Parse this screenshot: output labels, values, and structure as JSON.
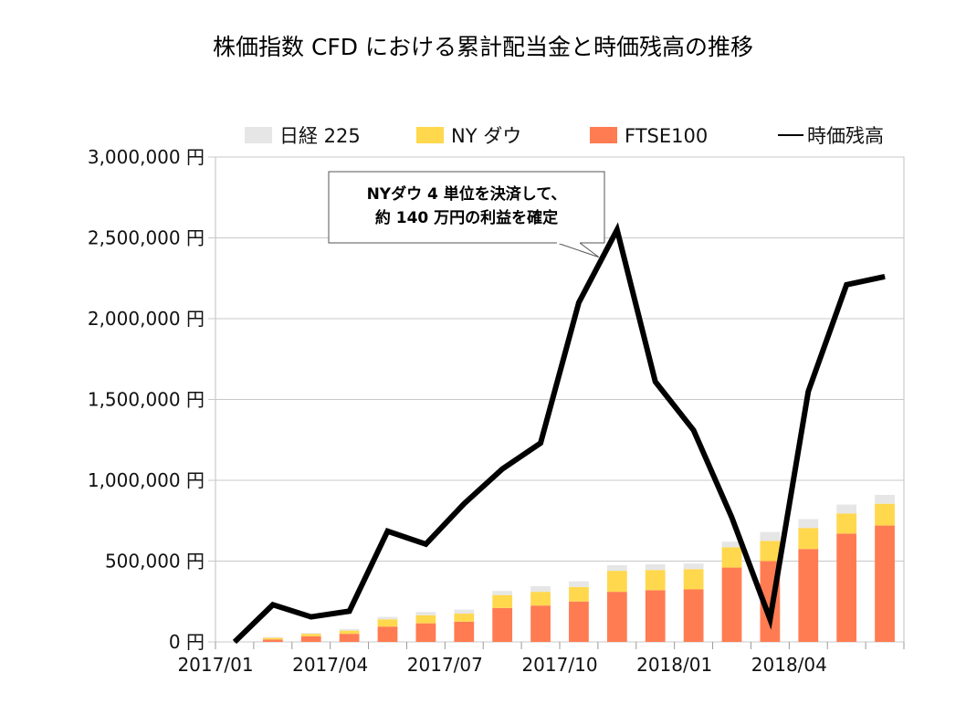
{
  "chart_data": {
    "type": "bar",
    "title": "株価指数 CFD における累計配当金と時価残高の推移",
    "x": [
      "2017/01",
      "2017/02",
      "2017/03",
      "2017/04",
      "2017/05",
      "2017/06",
      "2017/07",
      "2017/08",
      "2017/09",
      "2017/10",
      "2017/11",
      "2017/12",
      "2018/01",
      "2018/02",
      "2018/03",
      "2018/04",
      "2018/05",
      "2018/06"
    ],
    "x_tick_labels": [
      "2017/01",
      "2017/04",
      "2017/07",
      "2017/10",
      "2018/01",
      "2018/04"
    ],
    "y_tick_labels": [
      "0 円",
      "500,000 円",
      "1,000,000 円",
      "1,500,000 円",
      "2,000,000 円",
      "2,500,000 円",
      "3,000,000 円"
    ],
    "ylim": [
      0,
      3000000
    ],
    "grid": true,
    "legend_position": "top",
    "stacked": true,
    "series": [
      {
        "name": "FTSE100",
        "kind": "bar",
        "color": "#ff7c53",
        "values": [
          0,
          15000,
          35000,
          50000,
          95000,
          115000,
          125000,
          210000,
          225000,
          250000,
          310000,
          320000,
          325000,
          460000,
          500000,
          575000,
          670000,
          720000
        ]
      },
      {
        "name": "NY ダウ",
        "kind": "bar",
        "color": "#ffd84d",
        "values": [
          0,
          10000,
          15000,
          20000,
          45000,
          50000,
          50000,
          80000,
          85000,
          90000,
          130000,
          125000,
          125000,
          125000,
          125000,
          130000,
          125000,
          135000
        ]
      },
      {
        "name": "日経 225",
        "kind": "bar",
        "color": "#e6e6e6",
        "values": [
          0,
          5000,
          5000,
          10000,
          15000,
          20000,
          25000,
          25000,
          35000,
          35000,
          35000,
          35000,
          35000,
          35000,
          55000,
          55000,
          55000,
          55000
        ]
      },
      {
        "name": "時価残高",
        "kind": "line",
        "color": "#000000",
        "values": [
          0,
          230000,
          155000,
          190000,
          685000,
          605000,
          855000,
          1070000,
          1230000,
          2100000,
          2550000,
          1610000,
          1310000,
          770000,
          140000,
          1550000,
          2210000,
          2260000
        ]
      }
    ],
    "annotation": {
      "lines": [
        "NYダウ 4 単位を決済して、",
        "約 140 万円の利益を確定"
      ],
      "target_index": 10
    }
  }
}
